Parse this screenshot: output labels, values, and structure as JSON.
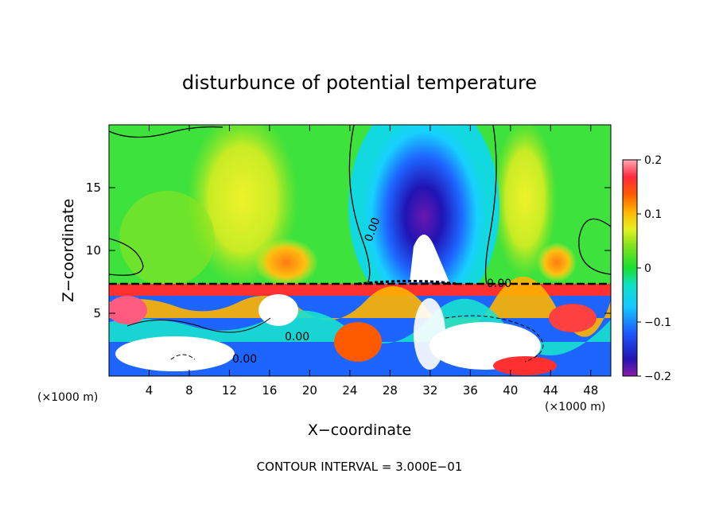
{
  "chart_data": {
    "type": "heatmap",
    "title": "disturbunce of potential temperature",
    "xlabel": "X−coordinate",
    "ylabel": "Z−coordinate",
    "x_unit_left": "(×1000 m)",
    "x_unit_right": "(×1000 m)",
    "footer": "CONTOUR INTERVAL = 3.000E−01",
    "xlim": [
      0,
      50
    ],
    "ylim": [
      0,
      20
    ],
    "x_ticks": [
      4,
      8,
      12,
      16,
      20,
      24,
      28,
      32,
      36,
      40,
      44,
      48
    ],
    "x_tick_labels": [
      "4",
      "8",
      "12",
      "16",
      "20",
      "24",
      "28",
      "32",
      "36",
      "40",
      "44",
      "48"
    ],
    "y_ticks": [
      5,
      10,
      15
    ],
    "y_tick_labels": [
      "5",
      "10",
      "15"
    ],
    "colorbar": {
      "range": [
        -0.2,
        0.2
      ],
      "tick_values": [
        0.2,
        0.1,
        0,
        -0.1,
        -0.2
      ],
      "tick_labels": [
        "0.2",
        "0.1",
        "0",
        "−0.1",
        "−0.2"
      ]
    },
    "contour_label": "0.00"
  }
}
